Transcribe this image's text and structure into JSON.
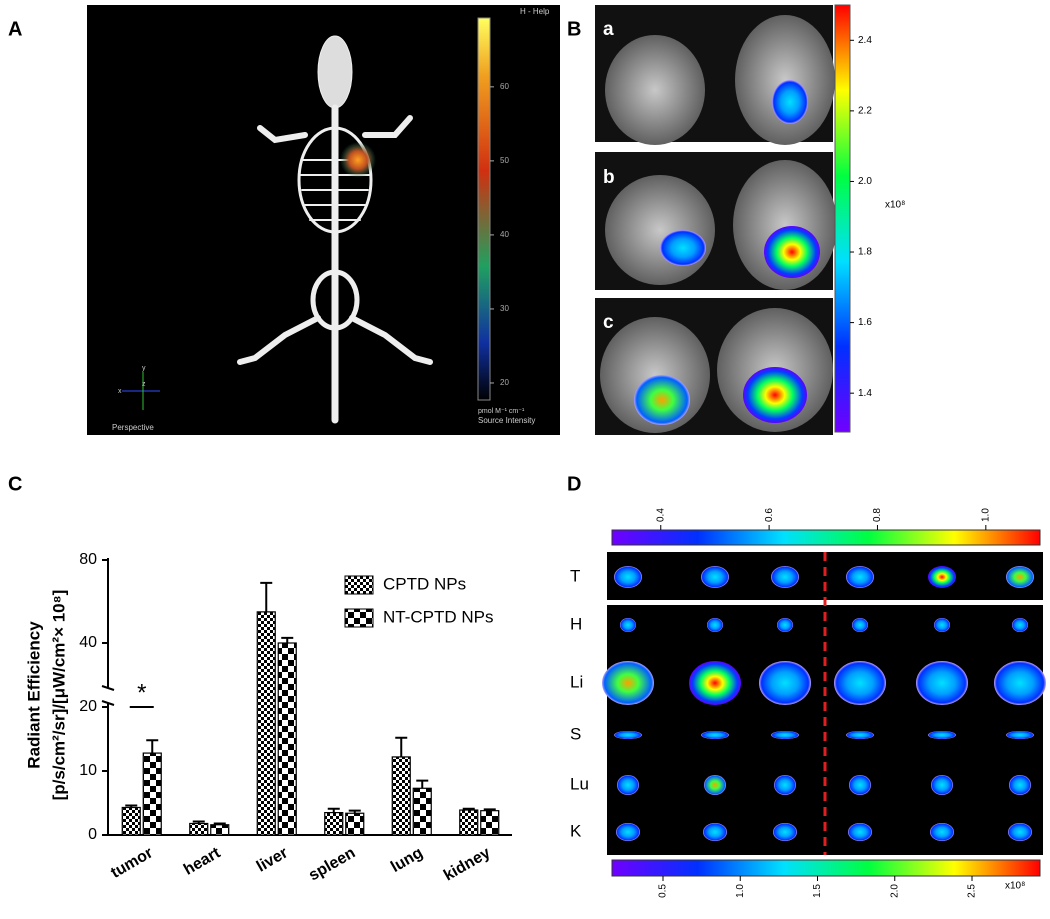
{
  "figure": {
    "panel_a": {
      "label": "A",
      "help": "H - Help",
      "view": "Perspective",
      "axes": [
        "x",
        "y",
        "z"
      ],
      "colorbar": {
        "lim": [
          17.7,
          69.3
        ],
        "ticks": [
          20,
          30,
          40,
          50,
          60
        ],
        "unit": "pmol M⁻¹ cm⁻¹",
        "title": "Source Intensity"
      }
    },
    "panel_b": {
      "label": "B",
      "rows": [
        "a",
        "b",
        "c"
      ],
      "colorbar": {
        "lim": [
          1.29,
          2.5
        ],
        "ticks": [
          1.4,
          1.6,
          1.8,
          {
            "value": 2,
            "label": "2.0"
          },
          2.2,
          2.4
        ],
        "unit": "x10⁸"
      }
    },
    "panel_c": {
      "label": "C"
    },
    "panel_d": {
      "label": "D",
      "rows": [
        "T",
        "H",
        "Li",
        "S",
        "Lu",
        "K"
      ],
      "top_colorbar": {
        "lim": [
          0.31,
          1.1
        ],
        "ticks": [
          0.4,
          0.6,
          0.8,
          {
            "value": 1,
            "label": "1.0"
          }
        ]
      },
      "bottom_colorbar": {
        "lim": [
          0.17,
          2.94
        ],
        "ticks": [
          0.5,
          {
            "value": 1,
            "label": "1.0"
          },
          1.5,
          {
            "value": 2,
            "label": "2.0"
          },
          2.5
        ],
        "unit": "x10⁸"
      }
    }
  },
  "chart_data": {
    "type": "bar",
    "ylabel": [
      "Radiant Efficiency",
      "[p/s/cm²/sr]/[μW/cm²× 10⁸]"
    ],
    "categories": [
      "tumor",
      "heart",
      "liver",
      "spleen",
      "lung",
      "kidney"
    ],
    "series": [
      {
        "name": "CPTD NPs",
        "color": "#000000",
        "hatch": "fine",
        "values": [
          4.3,
          1.8,
          55,
          3.5,
          12.2,
          3.9
        ],
        "errors": [
          0.3,
          0.3,
          14,
          0.6,
          3,
          0.2
        ]
      },
      {
        "name": "NT-CPTD NPs",
        "color": "#000000",
        "hatch": "coarse",
        "values": [
          12.8,
          1.6,
          40,
          3.4,
          7.3,
          3.8
        ],
        "errors": [
          2,
          0.2,
          2.5,
          0.4,
          1.2,
          0.2
        ]
      }
    ],
    "y_segments": [
      {
        "ylim": [
          0,
          20
        ],
        "yticks": [
          0,
          10,
          20
        ]
      },
      {
        "ylim": [
          20,
          80
        ],
        "yticks": [
          40,
          80
        ]
      }
    ],
    "significance": {
      "label": "*",
      "category": 0
    },
    "legend": "top-right"
  }
}
